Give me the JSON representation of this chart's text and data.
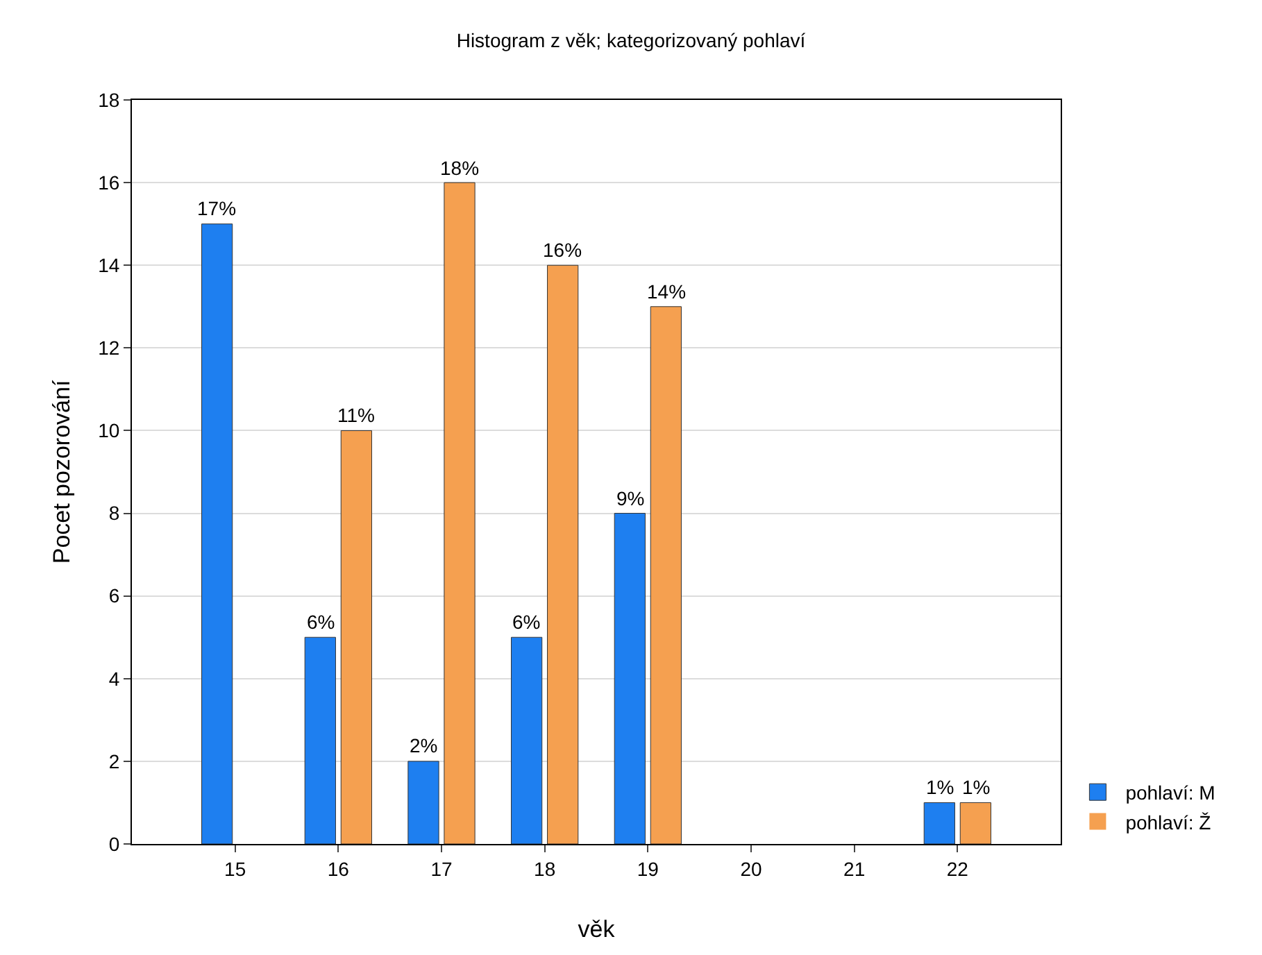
{
  "chart_data": {
    "type": "bar",
    "title": "Histogram z věk; kategorizovaný pohlaví",
    "xlabel": "věk",
    "ylabel": "Pocet pozorování",
    "categories": [
      "15",
      "16",
      "17",
      "18",
      "19",
      "20",
      "21",
      "22"
    ],
    "series": [
      {
        "name": "pohlaví: M",
        "color": "#1e7ff0",
        "values": [
          15,
          5,
          2,
          5,
          8,
          0,
          0,
          1
        ]
      },
      {
        "name": "pohlaví: Ž",
        "color": "#f5a050",
        "values": [
          0,
          10,
          16,
          14,
          13,
          0,
          0,
          1
        ]
      }
    ],
    "annotations": [
      {
        "text": "17%",
        "x": "15",
        "y": 15
      },
      {
        "text": "6%",
        "x": "16",
        "y": 5
      },
      {
        "text": "11%",
        "x": "16",
        "y": 10
      },
      {
        "text": "2%",
        "x": "17",
        "y": 2
      },
      {
        "text": "18%",
        "x": "17",
        "y": 16
      },
      {
        "text": "6%",
        "x": "18",
        "y": 5
      },
      {
        "text": "16%",
        "x": "18",
        "y": 14
      },
      {
        "text": "9%",
        "x": "19",
        "y": 8
      },
      {
        "text": "14%",
        "x": "19",
        "y": 13
      },
      {
        "text": "1%",
        "x": "22",
        "y": 1
      },
      {
        "text": "1%",
        "x": "22",
        "y": 1
      }
    ],
    "ylim": [
      0,
      18
    ],
    "yticks": [
      0,
      2,
      4,
      6,
      8,
      10,
      12,
      14,
      16,
      18
    ],
    "grid": "y",
    "legend": "bottom right"
  }
}
